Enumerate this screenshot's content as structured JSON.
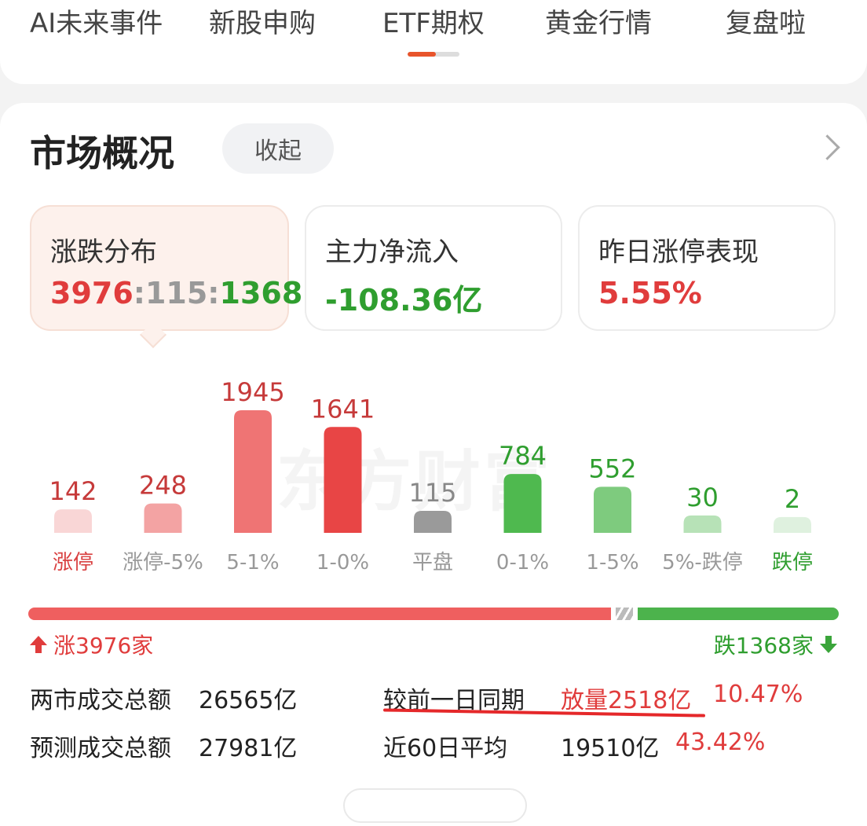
{
  "tabs": [
    "AI未来事件",
    "新股申购",
    "ETF期权",
    "黄金行情",
    "复盘啦"
  ],
  "active_tab": "ETF期权",
  "section": {
    "title": "市场概况",
    "collapse_label": "收起"
  },
  "stats": [
    {
      "label": "涨跌分布",
      "up": "3976",
      "sep": ":",
      "flat": "115",
      "down": "1368"
    },
    {
      "label": "主力净流入",
      "value": "-108.36亿"
    },
    {
      "label": "昨日涨停表现",
      "value": "5.55%"
    }
  ],
  "chart_data": {
    "type": "bar",
    "categories": [
      "涨停",
      "涨停-5%",
      "5-1%",
      "1-0%",
      "平盘",
      "0-1%",
      "1-5%",
      "5%-跌停",
      "跌停"
    ],
    "values": [
      142,
      248,
      1945,
      1641,
      115,
      784,
      552,
      30,
      2
    ]
  },
  "colors": {
    "red": "#e03c3c",
    "green": "#2f9e2f",
    "gray": "#999999",
    "bars": [
      "#f9d6d6",
      "#f3a3a3",
      "#ef7474",
      "#e84545",
      "#9a9a9a",
      "#4fb94f",
      "#7ecb7e",
      "#b7e2b7",
      "#dff1df"
    ],
    "value_label_colors": [
      "#c63a3a",
      "#c63a3a",
      "#c63a3a",
      "#c63a3a",
      "#888888",
      "#2f9e2f",
      "#2f9e2f",
      "#2f9e2f",
      "#2f9e2f"
    ],
    "cat_label_colors": [
      "#d94040",
      "#999999",
      "#999999",
      "#999999",
      "#999999",
      "#999999",
      "#999999",
      "#999999",
      "#2f9e2f"
    ]
  },
  "updown": {
    "up_label": "涨3976家",
    "down_label": "跌1368家"
  },
  "metrics": {
    "total_label": "两市成交总额",
    "total_value": "26565亿",
    "forecast_label": "预测成交总额",
    "forecast_value": "27981亿",
    "compare_label": "较前一日同期",
    "compare_value": "放量2518亿",
    "compare_pct": "10.47%",
    "avg_label": "近60日平均",
    "avg_value": "19510亿",
    "avg_pct": "43.42%"
  },
  "watermark": "东方财富"
}
